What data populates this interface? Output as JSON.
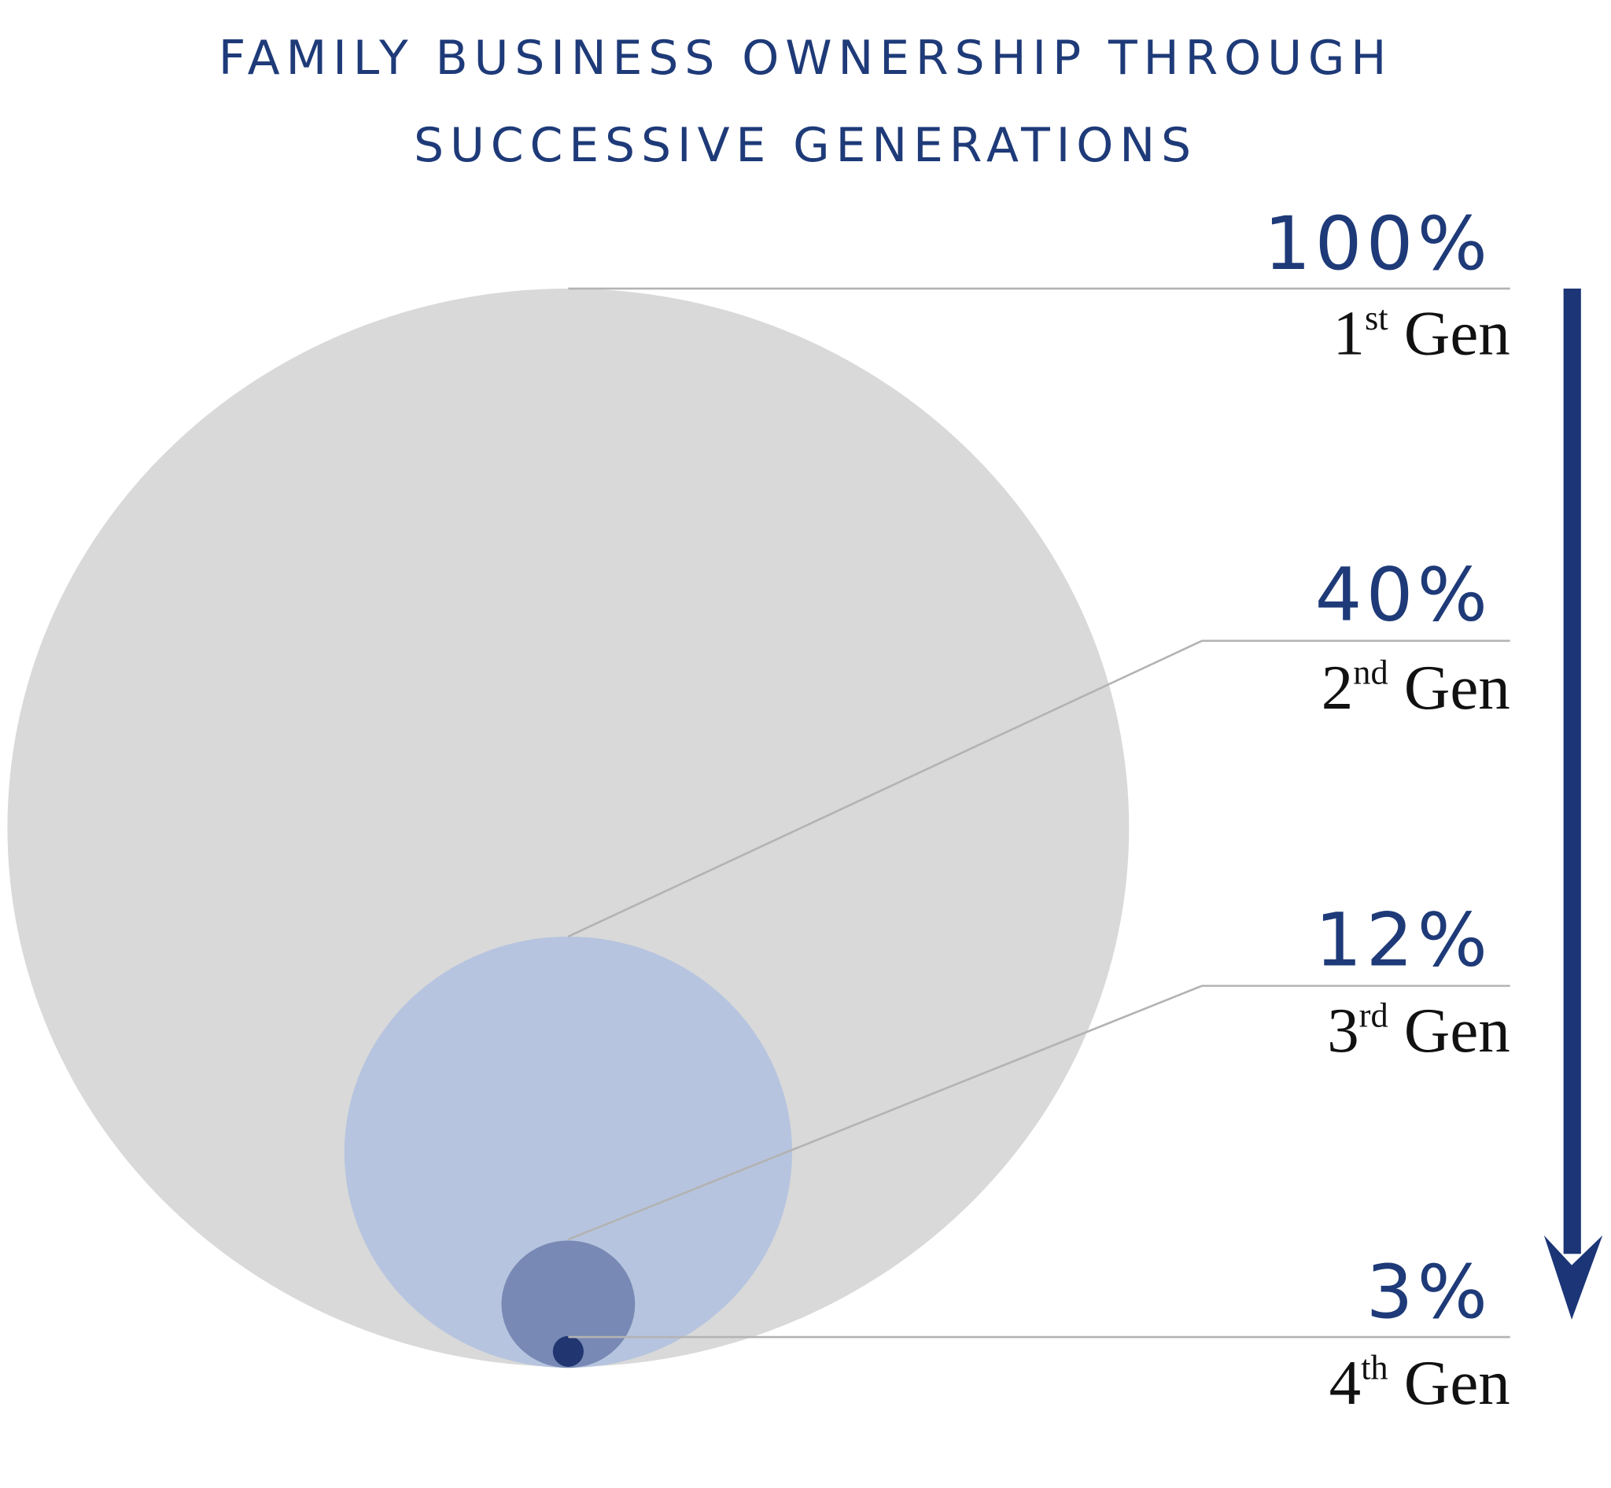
{
  "chart_data": {
    "type": "bubble",
    "title_lines": [
      "FAMILY BUSINESS OWNERSHIP THROUGH",
      "SUCCESSIVE GENERATIONS"
    ],
    "series": [
      {
        "label": "100%",
        "value": 100,
        "gen_num": "1",
        "gen_sup": "st",
        "gen_word": "Gen",
        "color": "#d9d9d9"
      },
      {
        "label": "40%",
        "value": 40,
        "gen_num": "2",
        "gen_sup": "nd",
        "gen_word": "Gen",
        "color": "#b6c4df"
      },
      {
        "label": "12%",
        "value": 12,
        "gen_num": "3",
        "gen_sup": "rd",
        "gen_word": "Gen",
        "color": "#7789b4"
      },
      {
        "label": "3%",
        "value": 3,
        "gen_num": "4",
        "gen_sup": "th",
        "gen_word": "Gen",
        "color": "#213670"
      }
    ],
    "arrow_color": "#1b3577",
    "leader_color": "#b3b3b3",
    "title_color": "#1e3a78"
  }
}
